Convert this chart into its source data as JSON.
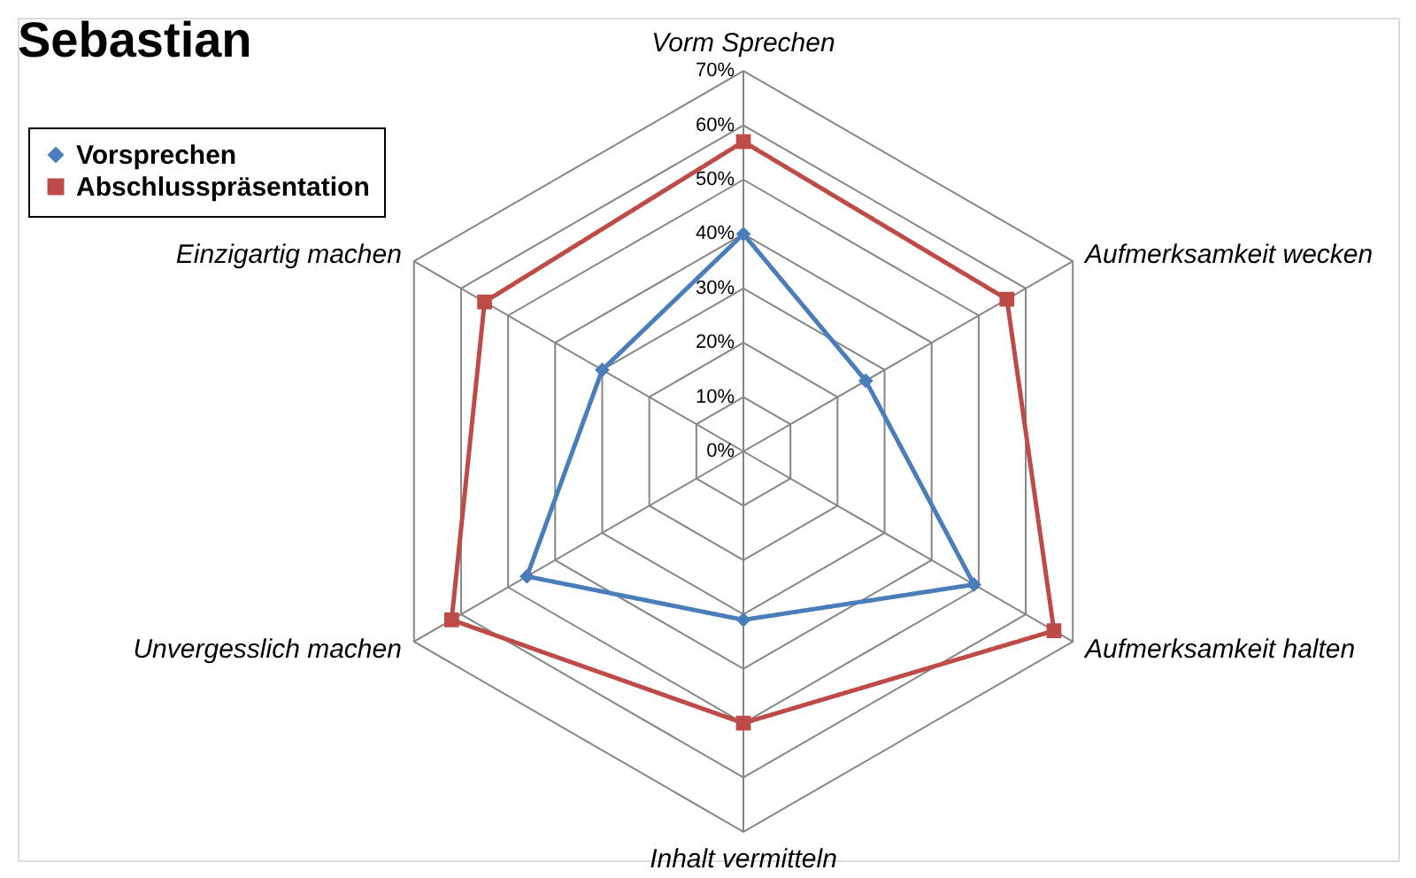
{
  "chart_data": {
    "type": "radar",
    "title": "Sebastian",
    "categories": [
      "Vorm Sprechen",
      "Aufmerksamkeit wecken",
      "Aufmerksamkeit halten",
      "Inhalt vermitteln",
      "Unvergesslich machen",
      "Einzigartig machen"
    ],
    "series": [
      {
        "name": "Vorsprechen",
        "color": "#4a7ebb",
        "marker": "diamond",
        "values": [
          40,
          26,
          49,
          31,
          46,
          30
        ]
      },
      {
        "name": "Abschlusspräsentation",
        "color": "#be4b48",
        "marker": "square",
        "values": [
          57,
          56,
          66,
          50,
          62,
          55
        ]
      }
    ],
    "ylim": [
      0,
      70
    ],
    "yticks": [
      {
        "value": 0,
        "label": "0%"
      },
      {
        "value": 10,
        "label": "10%"
      },
      {
        "value": 20,
        "label": "20%"
      },
      {
        "value": 30,
        "label": "30%"
      },
      {
        "value": 40,
        "label": "40%"
      },
      {
        "value": 50,
        "label": "50%"
      },
      {
        "value": 60,
        "label": "60%"
      },
      {
        "value": 70,
        "label": "70%"
      }
    ],
    "grid": true,
    "legend": "top left",
    "line_style": "solid"
  }
}
